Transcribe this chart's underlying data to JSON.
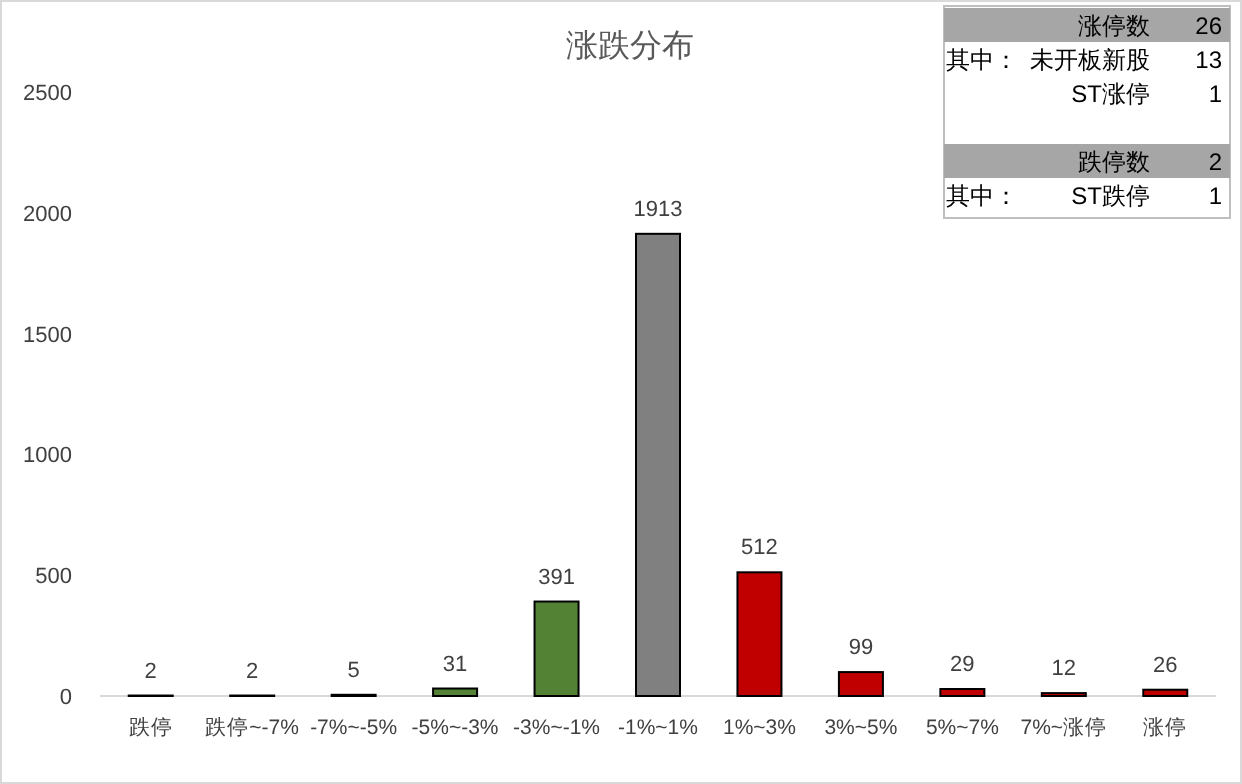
{
  "chart_data": {
    "type": "bar",
    "title": "涨跌分布",
    "categories": [
      "跌停",
      "跌停~-7%",
      "-7%~-5%",
      "-5%~-3%",
      "-3%~-1%",
      "-1%~1%",
      "1%~3%",
      "3%~5%",
      "5%~7%",
      "7%~涨停",
      "涨停"
    ],
    "values": [
      2,
      2,
      5,
      31,
      391,
      1913,
      512,
      99,
      29,
      12,
      26
    ],
    "colors": [
      "#548235",
      "#548235",
      "#548235",
      "#548235",
      "#548235",
      "#808080",
      "#c00000",
      "#c00000",
      "#c00000",
      "#c00000",
      "#c00000"
    ],
    "ylim": [
      0,
      2500
    ],
    "yticks": [
      0,
      500,
      1000,
      1500,
      2000,
      2500
    ],
    "grid": false,
    "data_labels": true,
    "annotations": [
      "涨停数",
      "26",
      "其中：",
      "未开板新股",
      "13",
      "ST涨停",
      "1",
      "跌停数",
      "2",
      "其中：",
      "ST跌停",
      "1"
    ]
  }
}
